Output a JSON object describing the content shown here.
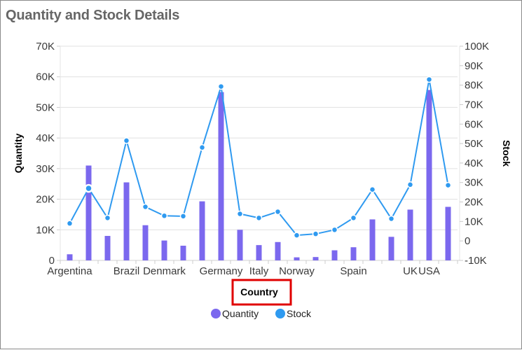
{
  "header": {
    "title": "Quantity and Stock Details"
  },
  "colors": {
    "quantity": "#7B68EE",
    "stock": "#2F9AF0",
    "highlight_box": "#E00000",
    "grid": "#E0E0E0",
    "title": "#666666"
  },
  "legend": {
    "items": [
      {
        "label": "Quantity",
        "color": "#7B68EE"
      },
      {
        "label": "Stock",
        "color": "#2F9AF0"
      }
    ]
  },
  "chart_data": {
    "type": "bar+line",
    "title": "Quantity and Stock Details",
    "xlabel": "Country",
    "ylabel": "Quantity",
    "y2label": "Stock",
    "ylim": [
      0,
      70000
    ],
    "y2lim": [
      -10000,
      100000
    ],
    "yticks": [
      "0",
      "10K",
      "20K",
      "30K",
      "40K",
      "50K",
      "60K",
      "70K"
    ],
    "y2ticks": [
      "-10K",
      "0",
      "10K",
      "20K",
      "30K",
      "40K",
      "50K",
      "60K",
      "70K",
      "80K",
      "90K",
      "100K"
    ],
    "grid": true,
    "legend_position": "bottom",
    "categories": [
      "Argentina",
      "",
      "",
      "Brazil",
      "",
      "Denmark",
      "",
      "",
      "Germany",
      "",
      "Italy",
      "",
      "Norway",
      "",
      "",
      "Spain",
      "",
      "",
      "UK",
      "USA",
      ""
    ],
    "series": [
      {
        "name": "Quantity",
        "type": "bar",
        "axis": "left",
        "values": [
          2000,
          31000,
          8000,
          25500,
          11500,
          6500,
          4800,
          19300,
          55000,
          10000,
          5000,
          6000,
          1000,
          1100,
          3300,
          4300,
          13400,
          7700,
          16600,
          55700,
          17500
        ]
      },
      {
        "name": "Stock",
        "type": "line",
        "axis": "right",
        "values": [
          9000,
          27000,
          11800,
          51500,
          17500,
          12900,
          12700,
          48000,
          79300,
          13900,
          11800,
          15000,
          2900,
          3600,
          5700,
          11800,
          26400,
          11400,
          28900,
          82900,
          28600
        ]
      }
    ],
    "highlighted_point": {
      "series": "Stock",
      "index": 1
    },
    "highlighted_label": "Country"
  }
}
